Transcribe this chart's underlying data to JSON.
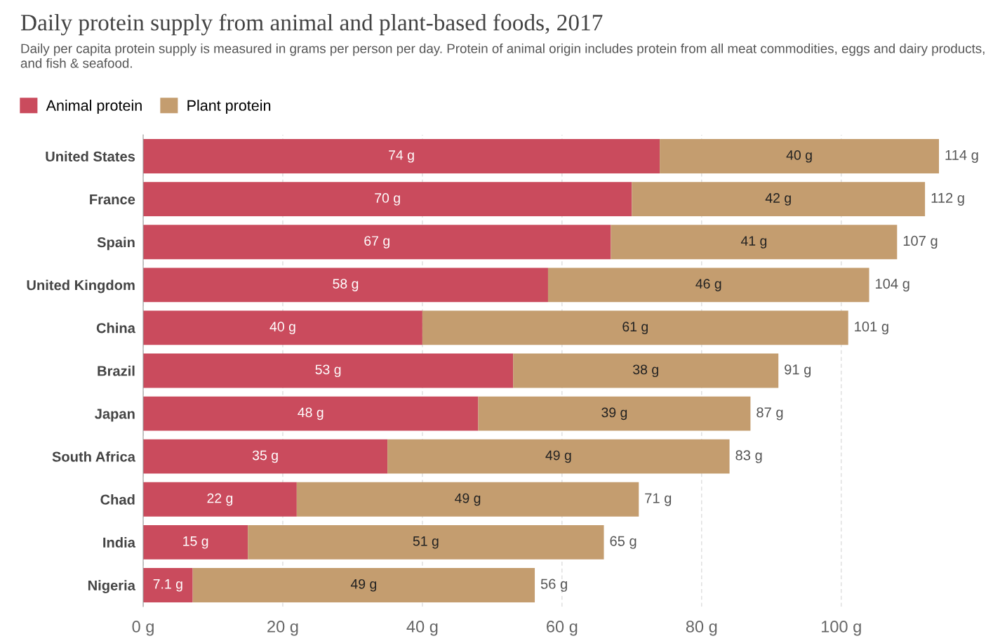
{
  "chart_data": {
    "type": "bar",
    "orientation": "horizontal",
    "stacked": true,
    "title": "Daily protein supply from animal and plant-based foods, 2017",
    "subtitle": "Daily per capita protein supply is measured in grams per person per day. Protein of animal origin includes protein from all meat commodities, eggs and dairy products, and fish & seafood.",
    "categories": [
      "United States",
      "France",
      "Spain",
      "United Kingdom",
      "China",
      "Brazil",
      "Japan",
      "South Africa",
      "Chad",
      "India",
      "Nigeria"
    ],
    "series": [
      {
        "name": "Animal protein",
        "color": "#ca4b5d",
        "values": [
          74,
          70,
          67,
          58,
          40,
          53,
          48,
          35,
          22,
          15,
          7.1
        ],
        "value_labels": [
          "74 g",
          "70 g",
          "67 g",
          "58 g",
          "40 g",
          "53 g",
          "48 g",
          "35 g",
          "22 g",
          "15 g",
          "7.1 g"
        ]
      },
      {
        "name": "Plant protein",
        "color": "#c49d6f",
        "values": [
          40,
          42,
          41,
          46,
          61,
          38,
          39,
          49,
          49,
          51,
          49
        ],
        "value_labels": [
          "40 g",
          "42 g",
          "41 g",
          "46 g",
          "61 g",
          "38 g",
          "39 g",
          "49 g",
          "49 g",
          "51 g",
          "49 g"
        ]
      }
    ],
    "totals": [
      "114 g",
      "112 g",
      "107 g",
      "104 g",
      "101 g",
      "91 g",
      "87 g",
      "83 g",
      "71 g",
      "65 g",
      "56 g"
    ],
    "xlim": [
      0,
      114
    ],
    "xticks": [
      {
        "value": 0,
        "label": "0 g"
      },
      {
        "value": 20,
        "label": "20 g"
      },
      {
        "value": 40,
        "label": "40 g"
      },
      {
        "value": 60,
        "label": "60 g"
      },
      {
        "value": 80,
        "label": "80 g"
      },
      {
        "value": 100,
        "label": "100 g"
      }
    ],
    "grid": "x",
    "legend": "top left"
  }
}
